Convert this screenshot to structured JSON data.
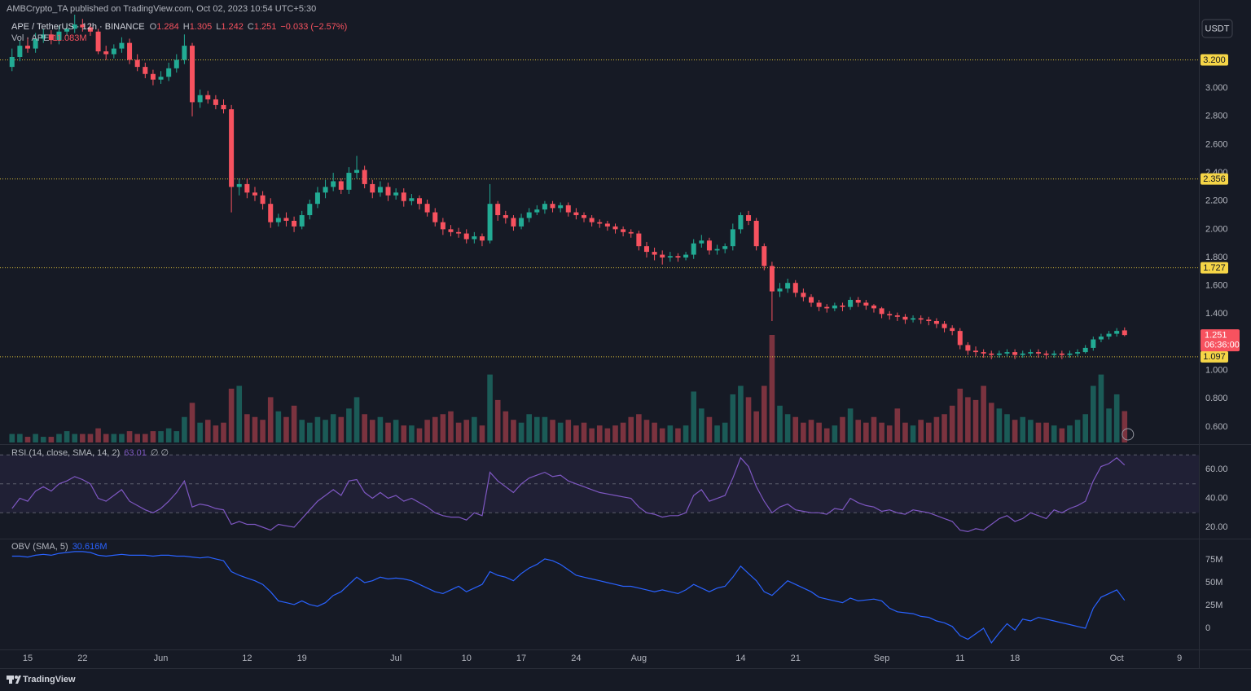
{
  "chart_data": {
    "type": "candlestick",
    "title": "AMBCrypto_TA published on TradingView.com, Oct 02, 2023 10:54 UTC+5:30",
    "symbol": "APE / TetherUS · 12h · BINANCE",
    "ohlc_labels": [
      "O",
      "H",
      "L",
      "C"
    ],
    "change_label": "−0.033 (−2.57%)",
    "currency": "USDT",
    "countdown": "06:36:00",
    "branding": "TradingView",
    "up_color": "#22ab94",
    "down_color": "#f7525f",
    "level_color": "#d9bd3a",
    "categories": [
      null,
      null,
      "15",
      null,
      null,
      null,
      null,
      null,
      null,
      "22",
      null,
      null,
      null,
      null,
      null,
      null,
      null,
      null,
      null,
      "Jun",
      null,
      null,
      null,
      null,
      null,
      null,
      null,
      null,
      null,
      null,
      "12",
      null,
      null,
      null,
      null,
      null,
      null,
      "19",
      null,
      null,
      null,
      null,
      null,
      null,
      null,
      null,
      null,
      null,
      null,
      "Jul",
      null,
      null,
      null,
      null,
      null,
      null,
      null,
      null,
      "10",
      null,
      null,
      null,
      null,
      null,
      null,
      "17",
      null,
      null,
      null,
      null,
      null,
      null,
      "24",
      null,
      null,
      null,
      null,
      null,
      null,
      null,
      "Aug",
      null,
      null,
      null,
      null,
      null,
      null,
      null,
      null,
      null,
      null,
      null,
      null,
      "14",
      null,
      null,
      null,
      null,
      null,
      null,
      "21",
      null,
      null,
      null,
      null,
      null,
      null,
      null,
      null,
      null,
      null,
      "Sep",
      null,
      null,
      null,
      null,
      null,
      null,
      null,
      null,
      null,
      "11",
      null,
      null,
      null,
      null,
      null,
      null,
      "18",
      null,
      null,
      null,
      null,
      null,
      null,
      null,
      null,
      null,
      null,
      null,
      null,
      "Oct",
      null,
      null,
      null,
      null,
      null,
      null,
      null,
      "9"
    ],
    "open": [
      3.15,
      3.22,
      3.3,
      3.28,
      3.35,
      3.38,
      3.34,
      3.4,
      3.42,
      3.45,
      3.43,
      3.4,
      3.26,
      3.24,
      3.28,
      3.32,
      3.2,
      3.15,
      3.1,
      3.06,
      3.08,
      3.14,
      3.2,
      3.3,
      2.9,
      2.95,
      2.92,
      2.88,
      2.85,
      2.3,
      2.32,
      2.26,
      2.24,
      2.18,
      2.05,
      2.08,
      2.06,
      2.02,
      2.1,
      2.18,
      2.26,
      2.3,
      2.34,
      2.28,
      2.4,
      2.42,
      2.32,
      2.26,
      2.3,
      2.24,
      2.26,
      2.2,
      2.22,
      2.18,
      2.12,
      2.05,
      2.0,
      1.98,
      1.97,
      1.93,
      1.95,
      1.92,
      2.18,
      2.1,
      2.08,
      2.02,
      2.08,
      2.12,
      2.14,
      2.18,
      2.15,
      2.17,
      2.12,
      2.1,
      2.08,
      2.05,
      2.04,
      2.02,
      2.0,
      1.98,
      1.97,
      1.88,
      1.84,
      1.82,
      1.8,
      1.81,
      1.8,
      1.82,
      1.9,
      1.92,
      1.85,
      1.86,
      1.88,
      2.0,
      2.1,
      2.06,
      1.88,
      1.74,
      1.56,
      1.58,
      1.62,
      1.55,
      1.52,
      1.48,
      1.45,
      1.44,
      1.46,
      1.45,
      1.5,
      1.48,
      1.46,
      1.44,
      1.4,
      1.39,
      1.38,
      1.36,
      1.37,
      1.36,
      1.35,
      1.33,
      1.3,
      1.28,
      1.18,
      1.14,
      1.13,
      1.12,
      1.11,
      1.12,
      1.13,
      1.11,
      1.12,
      1.13,
      1.12,
      1.11,
      1.12,
      1.11,
      1.12,
      1.13,
      1.16,
      1.22,
      1.24,
      1.26,
      1.284,
      null,
      null,
      null,
      null,
      null,
      null,
      null
    ],
    "high": [
      3.28,
      3.34,
      3.36,
      3.39,
      3.42,
      3.41,
      3.44,
      3.46,
      3.52,
      3.49,
      3.46,
      3.42,
      3.3,
      3.31,
      3.36,
      3.35,
      3.24,
      3.18,
      3.13,
      3.12,
      3.18,
      3.24,
      3.38,
      3.32,
      2.99,
      2.98,
      2.95,
      2.92,
      2.88,
      2.36,
      2.36,
      2.3,
      2.27,
      2.22,
      2.11,
      2.12,
      2.09,
      2.13,
      2.21,
      2.3,
      2.35,
      2.4,
      2.36,
      2.44,
      2.52,
      2.45,
      2.35,
      2.34,
      2.33,
      2.29,
      2.29,
      2.25,
      2.24,
      2.21,
      2.15,
      2.08,
      2.03,
      2.01,
      2.0,
      1.98,
      1.97,
      2.32,
      2.2,
      2.13,
      2.1,
      2.11,
      2.15,
      2.17,
      2.2,
      2.2,
      2.19,
      2.19,
      2.15,
      2.12,
      2.1,
      2.07,
      2.06,
      2.04,
      2.02,
      2.0,
      1.99,
      1.91,
      1.87,
      1.85,
      1.84,
      1.83,
      1.84,
      1.93,
      1.96,
      1.94,
      1.89,
      1.9,
      2.04,
      2.12,
      2.13,
      2.08,
      1.9,
      1.77,
      1.62,
      1.65,
      1.64,
      1.58,
      1.54,
      1.5,
      1.47,
      1.48,
      1.48,
      1.52,
      1.52,
      1.5,
      1.47,
      1.45,
      1.42,
      1.41,
      1.4,
      1.39,
      1.39,
      1.38,
      1.37,
      1.35,
      1.32,
      1.3,
      1.2,
      1.17,
      1.15,
      1.14,
      1.14,
      1.15,
      1.15,
      1.14,
      1.15,
      1.15,
      1.14,
      1.14,
      1.14,
      1.14,
      1.15,
      1.18,
      1.24,
      1.26,
      1.28,
      1.3,
      1.305,
      null,
      null,
      null,
      null,
      null,
      null,
      null
    ],
    "low": [
      3.12,
      3.19,
      3.25,
      3.25,
      3.32,
      3.31,
      3.31,
      3.37,
      3.39,
      3.4,
      3.37,
      3.24,
      3.2,
      3.21,
      3.25,
      3.17,
      3.12,
      3.07,
      3.02,
      3.03,
      3.05,
      3.11,
      3.17,
      2.8,
      2.86,
      2.89,
      2.85,
      2.82,
      2.12,
      2.24,
      2.22,
      2.2,
      2.14,
      2.01,
      2.02,
      2.02,
      1.98,
      2.0,
      2.07,
      2.15,
      2.22,
      2.27,
      2.25,
      2.25,
      2.36,
      2.29,
      2.22,
      2.23,
      2.2,
      2.21,
      2.16,
      2.17,
      2.14,
      2.09,
      2.02,
      1.96,
      1.95,
      1.94,
      1.9,
      1.9,
      1.88,
      1.9,
      2.06,
      2.04,
      1.99,
      2.0,
      2.05,
      2.1,
      2.11,
      2.12,
      2.12,
      2.09,
      2.07,
      2.05,
      2.02,
      2.01,
      1.99,
      1.97,
      1.95,
      1.94,
      1.85,
      1.8,
      1.78,
      1.75,
      1.77,
      1.77,
      1.78,
      1.79,
      1.87,
      1.82,
      1.82,
      1.83,
      1.85,
      1.97,
      2.03,
      1.85,
      1.71,
      1.35,
      1.52,
      1.55,
      1.52,
      1.49,
      1.45,
      1.42,
      1.41,
      1.42,
      1.42,
      1.43,
      1.45,
      1.43,
      1.41,
      1.37,
      1.36,
      1.35,
      1.33,
      1.34,
      1.33,
      1.32,
      1.3,
      1.27,
      1.25,
      1.15,
      1.11,
      1.1,
      1.09,
      1.08,
      1.09,
      1.1,
      1.08,
      1.09,
      1.1,
      1.09,
      1.08,
      1.09,
      1.08,
      1.09,
      1.1,
      1.12,
      1.14,
      1.2,
      1.22,
      1.24,
      1.242,
      null,
      null,
      null,
      null,
      null,
      null,
      null
    ],
    "close": [
      3.22,
      3.3,
      3.28,
      3.35,
      3.38,
      3.34,
      3.4,
      3.42,
      3.45,
      3.43,
      3.4,
      3.26,
      3.24,
      3.28,
      3.32,
      3.2,
      3.15,
      3.1,
      3.06,
      3.08,
      3.14,
      3.2,
      3.3,
      2.9,
      2.95,
      2.92,
      2.88,
      2.85,
      2.3,
      2.32,
      2.26,
      2.24,
      2.18,
      2.05,
      2.08,
      2.06,
      2.02,
      2.1,
      2.18,
      2.26,
      2.3,
      2.34,
      2.28,
      2.4,
      2.42,
      2.32,
      2.26,
      2.3,
      2.24,
      2.26,
      2.2,
      2.22,
      2.18,
      2.12,
      2.05,
      2.0,
      1.98,
      1.97,
      1.93,
      1.95,
      1.92,
      2.18,
      2.1,
      2.08,
      2.02,
      2.08,
      2.12,
      2.14,
      2.18,
      2.15,
      2.17,
      2.12,
      2.1,
      2.08,
      2.05,
      2.04,
      2.02,
      2.0,
      1.98,
      1.97,
      1.88,
      1.84,
      1.82,
      1.8,
      1.81,
      1.8,
      1.82,
      1.9,
      1.92,
      1.85,
      1.86,
      1.88,
      2.0,
      2.1,
      2.06,
      1.88,
      1.74,
      1.56,
      1.58,
      1.62,
      1.55,
      1.52,
      1.48,
      1.45,
      1.44,
      1.46,
      1.45,
      1.5,
      1.48,
      1.46,
      1.44,
      1.4,
      1.39,
      1.38,
      1.36,
      1.37,
      1.36,
      1.35,
      1.33,
      1.3,
      1.28,
      1.18,
      1.14,
      1.13,
      1.12,
      1.11,
      1.12,
      1.13,
      1.11,
      1.12,
      1.13,
      1.12,
      1.11,
      1.12,
      1.11,
      1.12,
      1.13,
      1.16,
      1.22,
      1.24,
      1.26,
      1.28,
      1.251,
      null,
      null,
      null,
      null,
      null,
      null,
      null
    ],
    "volume": {
      "name": "Vol · APE",
      "value_label": "11.083M",
      "values": [
        3,
        3,
        2,
        3,
        2,
        2,
        3,
        4,
        3,
        3,
        3,
        5,
        3,
        3,
        3,
        4,
        3,
        3,
        4,
        4,
        5,
        4,
        9,
        14,
        7,
        8,
        6,
        7,
        19,
        20,
        10,
        9,
        8,
        16,
        11,
        9,
        13,
        8,
        7,
        9,
        8,
        10,
        9,
        12,
        16,
        10,
        8,
        9,
        7,
        8,
        6,
        6,
        5,
        8,
        9,
        10,
        11,
        7,
        8,
        9,
        6,
        24,
        15,
        11,
        8,
        7,
        10,
        9,
        9,
        8,
        7,
        8,
        6,
        7,
        5,
        6,
        5,
        6,
        7,
        9,
        10,
        8,
        7,
        5,
        6,
        5,
        6,
        18,
        12,
        9,
        6,
        7,
        17,
        20,
        16,
        11,
        20,
        38,
        13,
        10,
        9,
        7,
        8,
        7,
        5,
        6,
        9,
        12,
        8,
        7,
        9,
        7,
        6,
        12,
        7,
        6,
        8,
        7,
        9,
        10,
        13,
        19,
        16,
        15,
        20,
        14,
        12,
        10,
        8,
        9,
        8,
        7,
        7,
        6,
        5,
        6,
        8,
        10,
        20,
        24,
        12,
        17,
        11.083,
        null,
        null,
        null,
        null,
        null,
        null,
        null
      ]
    },
    "ylim": [
      0.49,
      3.52
    ],
    "yticks": [
      {
        "value": 0.6,
        "label": "0.600"
      },
      {
        "value": 0.8,
        "label": "0.800"
      },
      {
        "value": 1,
        "label": "1.000"
      },
      {
        "value": 1.4,
        "label": "1.400"
      },
      {
        "value": 1.6,
        "label": "1.600"
      },
      {
        "value": 1.8,
        "label": "1.800"
      },
      {
        "value": 2,
        "label": "2.000"
      },
      {
        "value": 2.2,
        "label": "2.200"
      },
      {
        "value": 2.4,
        "label": "2.400"
      },
      {
        "value": 2.6,
        "label": "2.600"
      },
      {
        "value": 2.8,
        "label": "2.800"
      },
      {
        "value": 3,
        "label": "3.000"
      }
    ],
    "levels": [
      {
        "value": 3.2,
        "label": "3.200"
      },
      {
        "value": 2.356,
        "label": "2.356"
      },
      {
        "value": 1.727,
        "label": "1.727"
      },
      {
        "value": 1.097,
        "label": "1.097"
      }
    ],
    "indicators": [
      {
        "type": "line",
        "name": "RSI (14, close, SMA, 14, 2)",
        "na_label": "∅ ∅",
        "color": "#7e57c2",
        "ylim": [
          12.7,
          75.8
        ],
        "yticks": [
          {
            "value": 20,
            "label": "20.00"
          },
          {
            "value": 40,
            "label": "40.00"
          },
          {
            "value": 60,
            "label": "60.00"
          }
        ],
        "levels": [
          70,
          50,
          30
        ],
        "values": [
          33,
          40,
          38,
          45,
          48,
          45,
          50,
          52,
          55,
          53,
          50,
          40,
          38,
          42,
          46,
          38,
          35,
          32,
          30,
          33,
          38,
          44,
          52,
          34,
          36,
          35,
          33,
          32,
          22,
          24,
          22,
          22,
          20,
          18,
          22,
          21,
          20,
          26,
          32,
          38,
          42,
          46,
          42,
          52,
          53,
          44,
          40,
          44,
          40,
          42,
          38,
          40,
          37,
          34,
          30,
          28,
          27,
          27,
          25,
          30,
          28,
          58,
          52,
          48,
          44,
          50,
          54,
          56,
          58,
          55,
          56,
          52,
          50,
          48,
          46,
          44,
          43,
          42,
          41,
          40,
          34,
          30,
          29,
          27,
          28,
          28,
          30,
          42,
          46,
          38,
          40,
          42,
          54,
          68,
          62,
          48,
          38,
          30,
          34,
          36,
          32,
          31,
          30,
          30,
          29,
          33,
          32,
          40,
          37,
          35,
          34,
          31,
          32,
          30,
          29,
          32,
          31,
          30,
          28,
          26,
          24,
          18,
          17,
          19,
          18,
          22,
          26,
          28,
          24,
          26,
          30,
          28,
          26,
          32,
          30,
          33,
          35,
          38,
          52,
          62,
          64,
          68,
          63.01,
          null,
          null,
          null,
          null,
          null,
          null,
          null
        ]
      },
      {
        "type": "line",
        "name": "OBV (SMA, 5)",
        "value_label": "30.616M",
        "color": "#2962ff",
        "ylim": [
          -23.2,
          96.4
        ],
        "yticks": [
          0,
          {
            "value": 25,
            "label": "25M"
          },
          {
            "value": 50,
            "label": "50M"
          },
          {
            "value": 75,
            "label": "75M"
          }
        ],
        "values": [
          79,
          79,
          78,
          80,
          81,
          80,
          82,
          83,
          84,
          84,
          83,
          80,
          79,
          80,
          81,
          80,
          80,
          80,
          79,
          80,
          80,
          79,
          79,
          78,
          77,
          78,
          76,
          74,
          62,
          58,
          55,
          52,
          48,
          40,
          30,
          28,
          26,
          30,
          26,
          24,
          28,
          36,
          40,
          48,
          56,
          50,
          52,
          56,
          54,
          55,
          54,
          52,
          48,
          44,
          40,
          38,
          42,
          46,
          40,
          44,
          48,
          62,
          58,
          56,
          52,
          60,
          66,
          70,
          76,
          74,
          70,
          64,
          58,
          56,
          54,
          52,
          50,
          48,
          46,
          46,
          44,
          42,
          40,
          42,
          40,
          38,
          42,
          48,
          44,
          40,
          44,
          46,
          56,
          68,
          60,
          52,
          40,
          36,
          44,
          52,
          48,
          44,
          40,
          34,
          32,
          30,
          28,
          33,
          30,
          31,
          32,
          30,
          22,
          18,
          17,
          16,
          13,
          12,
          8,
          6,
          2,
          -8,
          -12,
          -6,
          0,
          -16,
          -5,
          5,
          -2,
          10,
          8,
          12,
          10,
          8,
          6,
          4,
          2,
          0,
          22,
          34,
          38,
          42,
          30.616,
          null,
          null,
          null,
          null,
          null,
          null,
          null
        ]
      }
    ]
  }
}
